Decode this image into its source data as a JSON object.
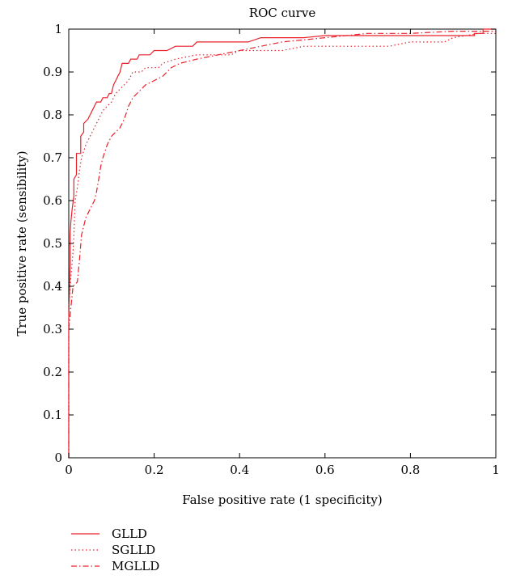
{
  "chart_data": {
    "type": "line",
    "title": "ROC curve",
    "xlabel": "False positive rate (1 specificity)",
    "ylabel": "True positive rate (sensibility)",
    "xlim": [
      0,
      1
    ],
    "ylim": [
      0,
      1
    ],
    "xticks": [
      "0",
      "0.2",
      "0.4",
      "0.6",
      "0.8",
      "1"
    ],
    "yticks": [
      "0",
      "0.1",
      "0.2",
      "0.3",
      "0.4",
      "0.5",
      "0.6",
      "0.7",
      "0.8",
      "0.9",
      "1"
    ],
    "grid": false,
    "legend_position": "bottom-left, below plot",
    "color": "#e8202a",
    "series": [
      {
        "name": "GLLD",
        "line_style": "solid",
        "points": [
          [
            0,
            0
          ],
          [
            0,
            0.32
          ],
          [
            0.003,
            0.45
          ],
          [
            0.003,
            0.52
          ],
          [
            0.005,
            0.55
          ],
          [
            0.008,
            0.58
          ],
          [
            0.012,
            0.61
          ],
          [
            0.012,
            0.65
          ],
          [
            0.018,
            0.66
          ],
          [
            0.018,
            0.71
          ],
          [
            0.028,
            0.71
          ],
          [
            0.028,
            0.75
          ],
          [
            0.035,
            0.76
          ],
          [
            0.035,
            0.78
          ],
          [
            0.045,
            0.79
          ],
          [
            0.05,
            0.8
          ],
          [
            0.055,
            0.81
          ],
          [
            0.06,
            0.82
          ],
          [
            0.065,
            0.83
          ],
          [
            0.075,
            0.83
          ],
          [
            0.08,
            0.84
          ],
          [
            0.09,
            0.84
          ],
          [
            0.095,
            0.85
          ],
          [
            0.1,
            0.85
          ],
          [
            0.105,
            0.87
          ],
          [
            0.11,
            0.88
          ],
          [
            0.115,
            0.89
          ],
          [
            0.12,
            0.9
          ],
          [
            0.125,
            0.92
          ],
          [
            0.14,
            0.92
          ],
          [
            0.145,
            0.93
          ],
          [
            0.16,
            0.93
          ],
          [
            0.165,
            0.94
          ],
          [
            0.19,
            0.94
          ],
          [
            0.2,
            0.95
          ],
          [
            0.23,
            0.95
          ],
          [
            0.25,
            0.96
          ],
          [
            0.29,
            0.96
          ],
          [
            0.3,
            0.97
          ],
          [
            0.42,
            0.97
          ],
          [
            0.45,
            0.98
          ],
          [
            0.55,
            0.98
          ],
          [
            0.6,
            0.985
          ],
          [
            0.95,
            0.985
          ],
          [
            0.95,
            0.99
          ],
          [
            0.97,
            0.99
          ],
          [
            0.97,
            1.0
          ],
          [
            1.0,
            1.0
          ]
        ]
      },
      {
        "name": "SGLLD",
        "line_style": "dotted",
        "points": [
          [
            0,
            0
          ],
          [
            0,
            0.35
          ],
          [
            0.005,
            0.42
          ],
          [
            0.01,
            0.48
          ],
          [
            0.012,
            0.52
          ],
          [
            0.015,
            0.6
          ],
          [
            0.02,
            0.63
          ],
          [
            0.025,
            0.67
          ],
          [
            0.03,
            0.7
          ],
          [
            0.04,
            0.73
          ],
          [
            0.05,
            0.75
          ],
          [
            0.06,
            0.77
          ],
          [
            0.07,
            0.79
          ],
          [
            0.08,
            0.81
          ],
          [
            0.09,
            0.82
          ],
          [
            0.1,
            0.83
          ],
          [
            0.11,
            0.85
          ],
          [
            0.12,
            0.86
          ],
          [
            0.13,
            0.87
          ],
          [
            0.14,
            0.88
          ],
          [
            0.15,
            0.9
          ],
          [
            0.17,
            0.9
          ],
          [
            0.18,
            0.91
          ],
          [
            0.21,
            0.91
          ],
          [
            0.22,
            0.92
          ],
          [
            0.25,
            0.93
          ],
          [
            0.3,
            0.94
          ],
          [
            0.38,
            0.94
          ],
          [
            0.4,
            0.95
          ],
          [
            0.5,
            0.95
          ],
          [
            0.55,
            0.96
          ],
          [
            0.75,
            0.96
          ],
          [
            0.8,
            0.97
          ],
          [
            0.88,
            0.97
          ],
          [
            0.9,
            0.98
          ],
          [
            0.96,
            0.99
          ],
          [
            1.0,
            0.99
          ]
        ]
      },
      {
        "name": "MGLLD",
        "line_style": "dash-dot",
        "points": [
          [
            0,
            0
          ],
          [
            0,
            0.3
          ],
          [
            0.005,
            0.35
          ],
          [
            0.01,
            0.4
          ],
          [
            0.02,
            0.41
          ],
          [
            0.025,
            0.46
          ],
          [
            0.03,
            0.52
          ],
          [
            0.04,
            0.56
          ],
          [
            0.05,
            0.58
          ],
          [
            0.06,
            0.6
          ],
          [
            0.065,
            0.62
          ],
          [
            0.07,
            0.65
          ],
          [
            0.075,
            0.68
          ],
          [
            0.08,
            0.7
          ],
          [
            0.09,
            0.73
          ],
          [
            0.1,
            0.75
          ],
          [
            0.11,
            0.76
          ],
          [
            0.12,
            0.77
          ],
          [
            0.13,
            0.79
          ],
          [
            0.14,
            0.82
          ],
          [
            0.15,
            0.84
          ],
          [
            0.16,
            0.85
          ],
          [
            0.18,
            0.87
          ],
          [
            0.2,
            0.88
          ],
          [
            0.22,
            0.89
          ],
          [
            0.24,
            0.91
          ],
          [
            0.26,
            0.92
          ],
          [
            0.3,
            0.93
          ],
          [
            0.35,
            0.94
          ],
          [
            0.4,
            0.95
          ],
          [
            0.45,
            0.96
          ],
          [
            0.5,
            0.97
          ],
          [
            0.55,
            0.975
          ],
          [
            0.6,
            0.98
          ],
          [
            0.65,
            0.985
          ],
          [
            0.7,
            0.99
          ],
          [
            0.8,
            0.99
          ],
          [
            0.9,
            0.995
          ],
          [
            1.0,
            0.995
          ]
        ]
      }
    ]
  }
}
